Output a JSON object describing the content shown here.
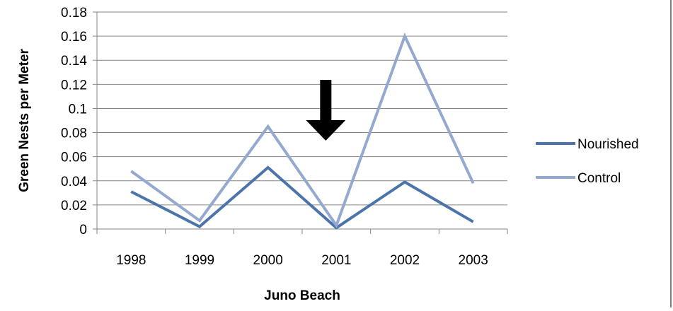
{
  "chart_data": {
    "type": "line",
    "title": "",
    "xlabel": "Juno Beach",
    "ylabel": "Green Nests per Meter",
    "categories": [
      "1998",
      "1999",
      "2000",
      "2001",
      "2002",
      "2003"
    ],
    "series": [
      {
        "name": "Nourished",
        "color": "#4a74aa",
        "values": [
          0.031,
          0.002,
          0.051,
          0.001,
          0.039,
          0.006
        ]
      },
      {
        "name": "Control",
        "color": "#93a9cf",
        "values": [
          0.048,
          0.007,
          0.085,
          0.003,
          0.16,
          0.038
        ]
      }
    ],
    "ylim": [
      0,
      0.18
    ],
    "y_ticks": [
      "0",
      "0.02",
      "0.04",
      "0.06",
      "0.08",
      "0.1",
      "0.12",
      "0.14",
      "0.16",
      "0.18"
    ],
    "grid": true,
    "legend_position": "right",
    "annotation": {
      "type": "down-arrow",
      "category": "2001",
      "color": "#000000"
    }
  }
}
